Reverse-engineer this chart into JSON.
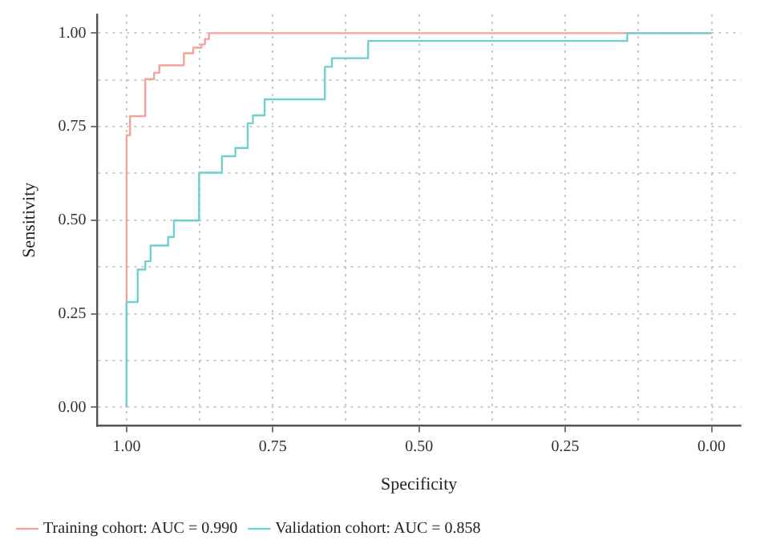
{
  "chart_data": {
    "type": "step",
    "xlabel": "Specificity",
    "ylabel": "Sensitivity",
    "series": [
      {
        "name": "Training cohort: AUC = 0.990",
        "color": "#f4a39c",
        "x": [
          1,
          1,
          0.994,
          0.968,
          0.953,
          0.944,
          0.902,
          0.886,
          0.872,
          0.866,
          0.859,
          0.148,
          0
        ],
        "values": [
          0,
          0.711,
          0.727,
          0.778,
          0.877,
          0.894,
          0.914,
          0.946,
          0.961,
          0.97,
          0.984,
          1,
          1
        ]
      },
      {
        "name": "Validation cohort: AUC = 0.858",
        "color": "#6fd0d0",
        "x": [
          1,
          1,
          0.981,
          0.968,
          0.959,
          0.929,
          0.919,
          0.876,
          0.837,
          0.814,
          0.793,
          0.784,
          0.764,
          0.661,
          0.649,
          0.587,
          0.144,
          0.029,
          0
        ],
        "values": [
          0,
          0.261,
          0.281,
          0.368,
          0.39,
          0.432,
          0.455,
          0.499,
          0.627,
          0.671,
          0.693,
          0.759,
          0.78,
          0.823,
          0.91,
          0.933,
          0.979,
          1,
          1
        ]
      }
    ],
    "xlim": [
      1.05,
      -0.05
    ],
    "ylim": [
      -0.05,
      1.05
    ],
    "xticks": [
      {
        "value": 1,
        "label": "1.00"
      },
      {
        "value": 0.875,
        "label": null
      },
      {
        "value": 0.75,
        "label": "0.75"
      },
      {
        "value": 0.625,
        "label": null
      },
      {
        "value": 0.5,
        "label": "0.50"
      },
      {
        "value": 0.375,
        "label": null
      },
      {
        "value": 0.25,
        "label": "0.25"
      },
      {
        "value": 0.125,
        "label": null
      },
      {
        "value": 0,
        "label": "0.00"
      }
    ],
    "yticks": [
      {
        "value": 0,
        "label": "0.00"
      },
      {
        "value": 0.125,
        "label": null
      },
      {
        "value": 0.25,
        "label": "0.25"
      },
      {
        "value": 0.375,
        "label": null
      },
      {
        "value": 0.5,
        "label": "0.50"
      },
      {
        "value": 0.625,
        "label": null
      },
      {
        "value": 0.75,
        "label": "0.75"
      },
      {
        "value": 0.875,
        "label": null
      },
      {
        "value": 1,
        "label": "1.00"
      }
    ],
    "grid": true,
    "legend": "bottom left",
    "marker": "none",
    "line_style": "solid"
  }
}
